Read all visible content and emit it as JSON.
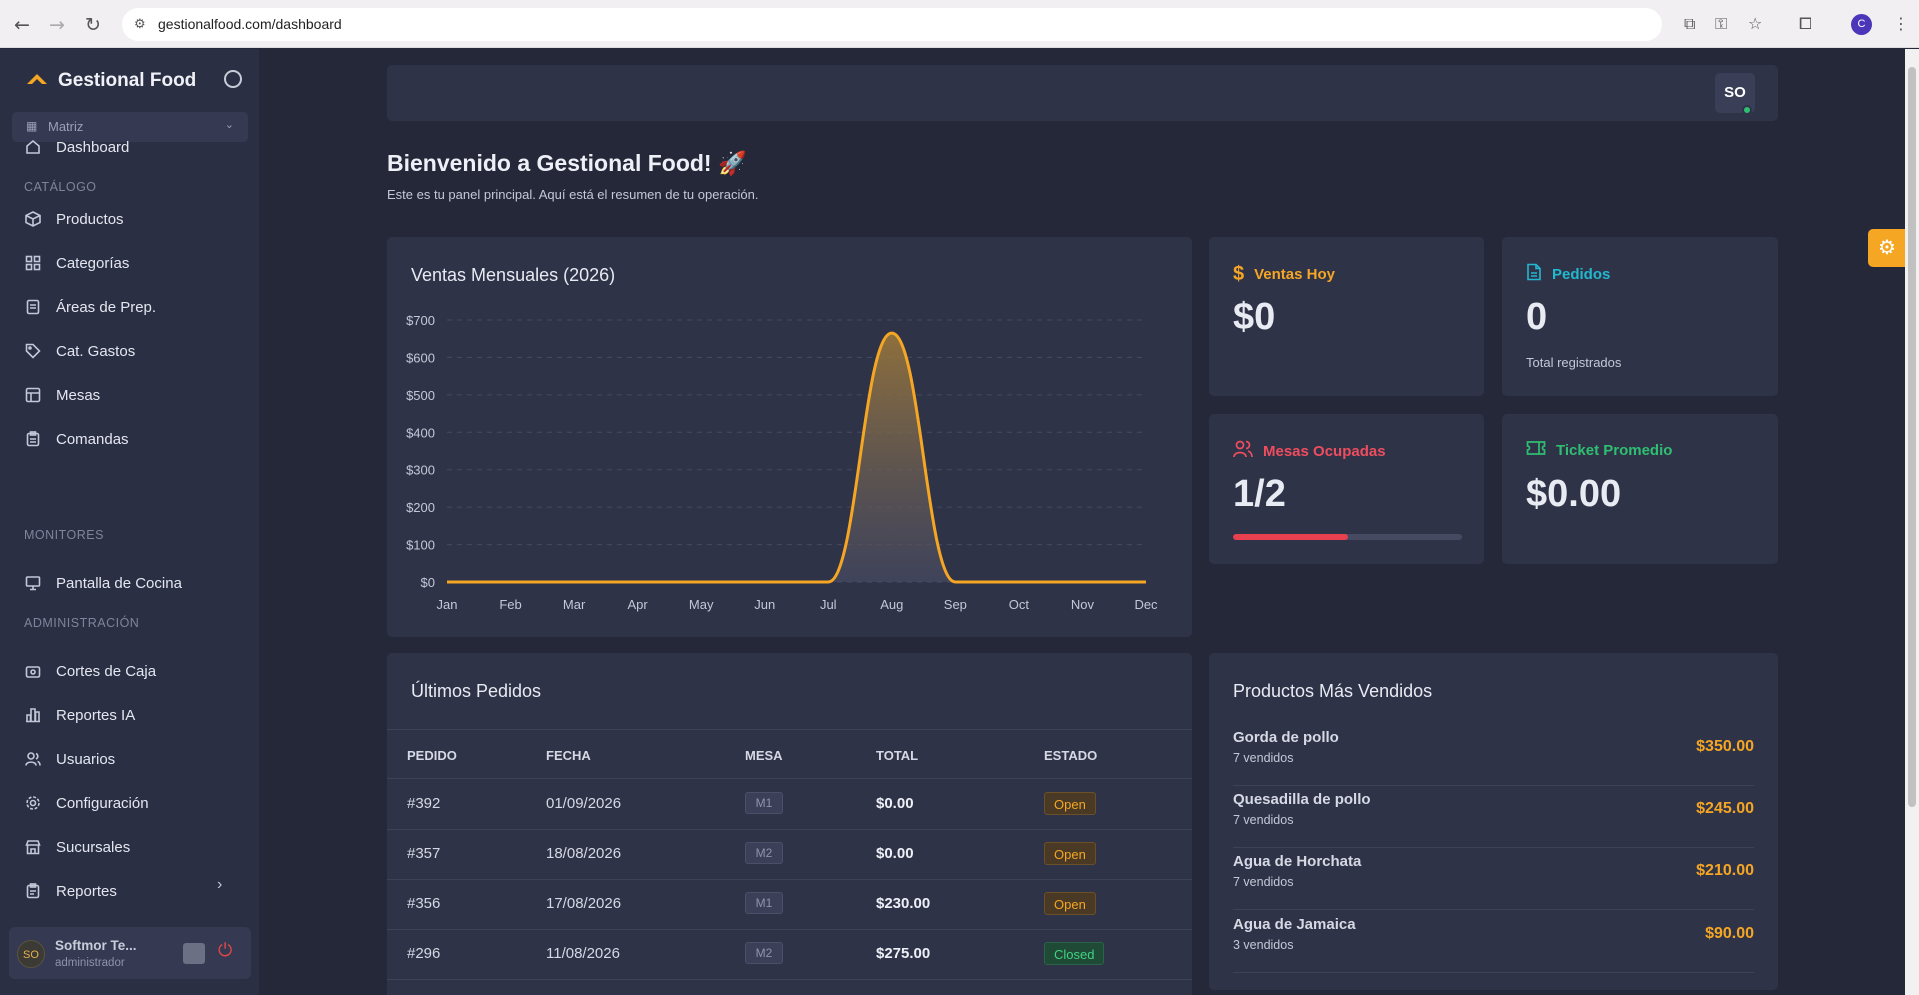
{
  "browser": {
    "url": "gestionalfood.com/dashboard",
    "profile_initial": "C"
  },
  "sidebar": {
    "brand": "Gestional Food",
    "branch": "Matriz",
    "items": [
      {
        "label": "Dashboard",
        "icon": "home-icon"
      },
      {
        "label": "Productos",
        "icon": "box-icon"
      },
      {
        "label": "Categorías",
        "icon": "grid-icon"
      },
      {
        "label": "Áreas de Prep.",
        "icon": "clipboard-icon"
      },
      {
        "label": "Cat. Gastos",
        "icon": "tag-icon"
      },
      {
        "label": "Mesas",
        "icon": "table-icon"
      },
      {
        "label": "Comandas",
        "icon": "clipboard-list-icon"
      },
      {
        "label": "Pantalla de Cocina",
        "icon": "monitor-icon"
      },
      {
        "label": "Cortes de Caja",
        "icon": "cash-register-icon"
      },
      {
        "label": "Reportes IA",
        "icon": "bar-chart-icon"
      },
      {
        "label": "Usuarios",
        "icon": "users-icon"
      },
      {
        "label": "Configuración",
        "icon": "gear-icon"
      },
      {
        "label": "Sucursales",
        "icon": "store-icon"
      },
      {
        "label": "Reportes",
        "icon": "report-icon"
      }
    ],
    "sections": {
      "catalog": "CATÁLOGO",
      "monitors": "MONITORES",
      "admin": "ADMINISTRACIÓN"
    },
    "user": {
      "initials": "SO",
      "name": "Softmor Te...",
      "role": "administrador"
    }
  },
  "topbar": {
    "avatar": "SO"
  },
  "page": {
    "title": "Bienvenido a Gestional Food! 🚀",
    "subtitle": "Este es tu panel principal. Aquí está el resumen de tu operación."
  },
  "chart_data": {
    "type": "area",
    "title": "Ventas Mensuales (2026)",
    "categories": [
      "Jan",
      "Feb",
      "Mar",
      "Apr",
      "May",
      "Jun",
      "Jul",
      "Aug",
      "Sep",
      "Oct",
      "Nov",
      "Dec"
    ],
    "values": [
      0,
      0,
      0,
      0,
      0,
      0,
      0,
      665,
      0,
      0,
      0,
      0
    ],
    "y_ticks": [
      "$0",
      "$100",
      "$200",
      "$300",
      "$400",
      "$500",
      "$600",
      "$700"
    ],
    "ylim": [
      0,
      700
    ],
    "grid": true,
    "color": "#f5a623"
  },
  "stats": {
    "sales_today": {
      "label": "Ventas Hoy",
      "value": "$0",
      "color": "#f5a623"
    },
    "orders": {
      "label": "Pedidos",
      "value": "0",
      "sub": "Total registrados",
      "color": "#22b8cf"
    },
    "tables": {
      "label": "Mesas Ocupadas",
      "value": "1/2",
      "occupancy": 0.5,
      "color": "#ef4d5e"
    },
    "avg_ticket": {
      "label": "Ticket Promedio",
      "value": "$0.00",
      "color": "#2fbf71"
    }
  },
  "orders": {
    "title": "Últimos Pedidos",
    "columns": [
      "PEDIDO",
      "FECHA",
      "MESA",
      "TOTAL",
      "ESTADO"
    ],
    "rows": [
      {
        "id": "#392",
        "date": "01/09/2026",
        "table": "M1",
        "total": "$0.00",
        "status": "Open"
      },
      {
        "id": "#357",
        "date": "18/08/2026",
        "table": "M2",
        "total": "$0.00",
        "status": "Open"
      },
      {
        "id": "#356",
        "date": "17/08/2026",
        "table": "M1",
        "total": "$230.00",
        "status": "Open"
      },
      {
        "id": "#296",
        "date": "11/08/2026",
        "table": "M2",
        "total": "$275.00",
        "status": "Closed"
      }
    ]
  },
  "top_products": {
    "title": "Productos Más Vendidos",
    "items": [
      {
        "name": "Gorda de pollo",
        "count": "7 vendidos",
        "price": "$350.00"
      },
      {
        "name": "Quesadilla de pollo",
        "count": "7 vendidos",
        "price": "$245.00"
      },
      {
        "name": "Agua de Horchata",
        "count": "7 vendidos",
        "price": "$210.00"
      },
      {
        "name": "Agua de Jamaica",
        "count": "3 vendidos",
        "price": "$90.00"
      }
    ]
  }
}
